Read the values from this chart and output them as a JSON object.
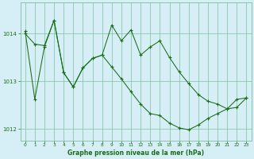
{
  "xlabel": "Graphe pression niveau de la mer (hPa)",
  "ylim": [
    1011.75,
    1014.65
  ],
  "xlim": [
    -0.5,
    23.5
  ],
  "yticks": [
    1012,
    1013,
    1014
  ],
  "xticks": [
    0,
    1,
    2,
    3,
    4,
    5,
    6,
    7,
    8,
    9,
    10,
    11,
    12,
    13,
    14,
    15,
    16,
    17,
    18,
    19,
    20,
    21,
    22,
    23
  ],
  "bg_color": "#d6eef5",
  "grid_color": "#7dbf9e",
  "line_color": "#1a6e1a",
  "series1": [
    1014.05,
    1012.62,
    1013.72,
    1014.28,
    1013.18,
    1012.88,
    1013.28,
    1013.48,
    1013.55,
    1014.18,
    1013.85,
    1014.08,
    1013.55,
    1013.72,
    1013.85,
    1013.5,
    1013.2,
    1012.95,
    1012.72,
    1012.58,
    1012.52,
    1012.42,
    1012.45,
    1012.65
  ],
  "series2": [
    1014.0,
    1013.78,
    1013.75,
    1014.28,
    1013.18,
    1012.88,
    1013.28,
    1013.48,
    1013.55,
    1013.3,
    1013.05,
    1012.78,
    1012.52,
    1012.32,
    1012.28,
    1012.12,
    1012.02,
    1011.98,
    1012.08,
    1012.22,
    1012.32,
    1012.42,
    1012.62,
    1012.65
  ]
}
